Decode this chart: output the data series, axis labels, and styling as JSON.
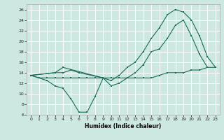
{
  "xlabel": "Humidex (Indice chaleur)",
  "background_color": "#cce8e0",
  "grid_color": "#ffffff",
  "line_color": "#1a6b5a",
  "xlim": [
    -0.5,
    23.5
  ],
  "ylim": [
    6,
    27
  ],
  "yticks": [
    6,
    8,
    10,
    12,
    14,
    16,
    18,
    20,
    22,
    24,
    26
  ],
  "xticks": [
    0,
    1,
    2,
    3,
    4,
    5,
    6,
    7,
    8,
    9,
    10,
    11,
    12,
    13,
    14,
    15,
    16,
    17,
    18,
    19,
    20,
    21,
    22,
    23
  ],
  "line1_x": [
    0,
    1,
    2,
    3,
    4,
    5,
    6,
    7,
    8,
    9
  ],
  "line1_y": [
    13.5,
    13,
    12.5,
    11.5,
    11,
    9,
    6.5,
    6.5,
    9.5,
    13
  ],
  "line2_x": [
    0,
    3,
    4,
    5,
    6,
    9,
    10,
    11,
    12,
    13,
    14,
    15,
    16,
    17,
    18,
    19,
    20,
    21,
    22
  ],
  "line2_y": [
    13.5,
    14,
    14,
    14.5,
    14,
    13,
    11.5,
    12,
    13,
    14,
    15.5,
    18,
    18.5,
    20.5,
    23,
    24,
    21,
    17.5,
    15
  ],
  "line3_x": [
    0,
    3,
    4,
    9,
    10,
    11,
    12,
    13,
    14,
    15,
    16,
    17,
    18,
    19,
    20,
    21,
    22,
    23
  ],
  "line3_y": [
    13.5,
    14,
    15,
    13,
    12.5,
    13.5,
    15,
    16,
    18,
    20.5,
    22.5,
    25,
    26,
    25.5,
    24,
    21,
    17,
    15
  ],
  "line4_x": [
    0,
    1,
    2,
    3,
    4,
    5,
    6,
    7,
    8,
    9,
    10,
    11,
    12,
    13,
    14,
    15,
    16,
    17,
    18,
    19,
    20,
    21,
    22,
    23
  ],
  "line4_y": [
    13.5,
    13,
    13,
    13,
    13,
    13,
    13,
    13,
    13,
    13,
    13,
    13,
    13,
    13,
    13,
    13,
    13.5,
    14,
    14,
    14,
    14.5,
    14.5,
    15,
    15
  ]
}
